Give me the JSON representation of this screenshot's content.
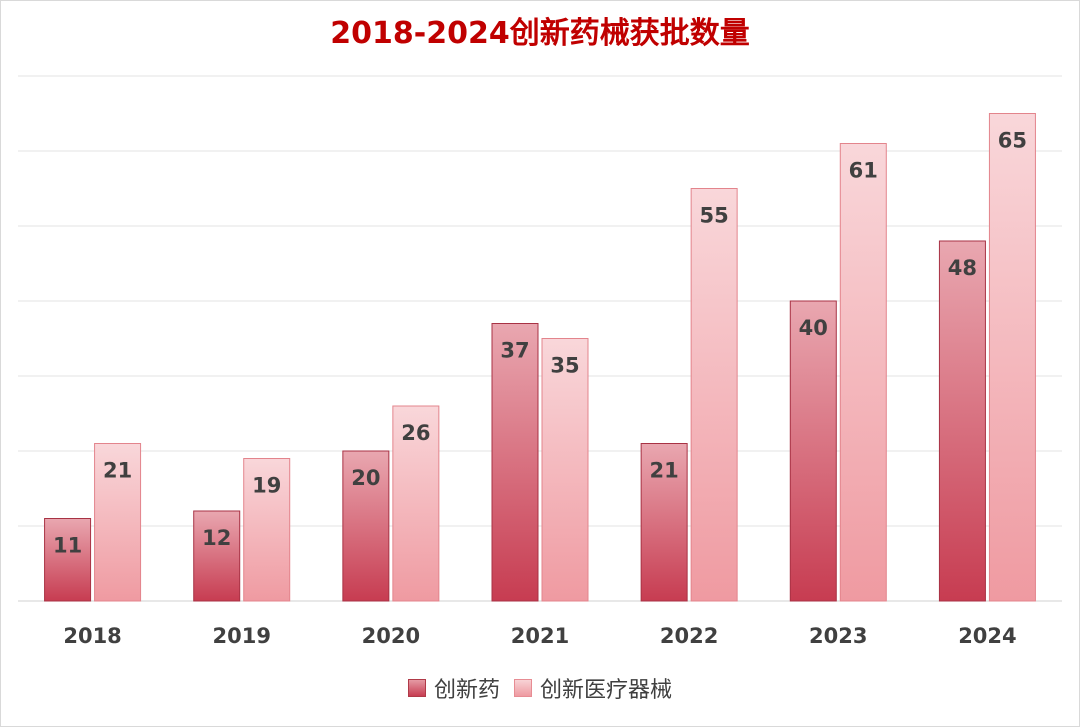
{
  "chart_data": {
    "type": "bar",
    "title": "2018-2024创新药械获批数量",
    "categories": [
      "2018",
      "2019",
      "2020",
      "2021",
      "2022",
      "2023",
      "2024"
    ],
    "series": [
      {
        "name": "创新药",
        "values": [
          11,
          12,
          20,
          37,
          21,
          40,
          48
        ]
      },
      {
        "name": "创新医疗器械",
        "values": [
          21,
          19,
          26,
          35,
          55,
          61,
          65
        ]
      }
    ],
    "ylim": [
      0,
      70
    ],
    "grid": true,
    "legend": "bottom",
    "data_labels": true
  }
}
